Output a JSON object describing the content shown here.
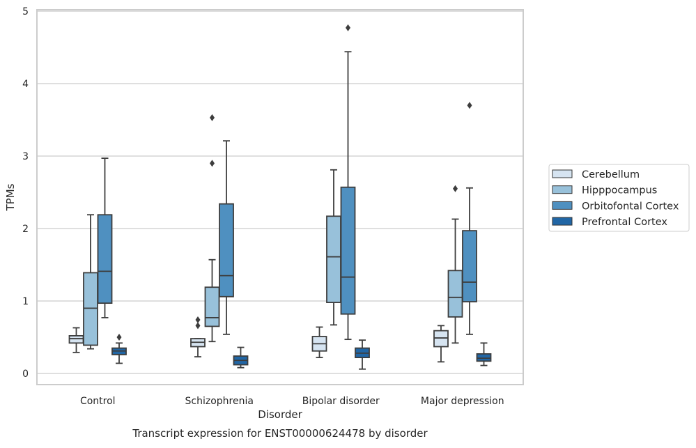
{
  "chart_data": {
    "type": "box",
    "caption": "Transcript expression for ENST00000624478 by disorder",
    "xlabel": "Disorder",
    "ylabel": "TPMs",
    "ylim": [
      -0.15,
      5.0
    ],
    "yticks": [
      0,
      1,
      2,
      3,
      4,
      5
    ],
    "grid": "horizontal",
    "legend_position": "right",
    "categories": [
      "Control",
      "Schizophrenia",
      "Bipolar disorder",
      "Major depression"
    ],
    "series": [
      {
        "name": "Cerebellum",
        "color": "#d6e4f1",
        "boxes": [
          {
            "whislo": 0.29,
            "q1": 0.42,
            "med": 0.48,
            "q3": 0.52,
            "whishi": 0.63,
            "fliers": []
          },
          {
            "whislo": 0.23,
            "q1": 0.37,
            "med": 0.43,
            "q3": 0.48,
            "whishi": 0.48,
            "fliers": [
              0.66,
              0.74
            ]
          },
          {
            "whislo": 0.22,
            "q1": 0.31,
            "med": 0.41,
            "q3": 0.51,
            "whishi": 0.64,
            "fliers": []
          },
          {
            "whislo": 0.16,
            "q1": 0.37,
            "med": 0.49,
            "q3": 0.59,
            "whishi": 0.66,
            "fliers": []
          }
        ]
      },
      {
        "name": "Hipppocampus",
        "color": "#98c1da",
        "boxes": [
          {
            "whislo": 0.34,
            "q1": 0.39,
            "med": 0.9,
            "q3": 1.39,
            "whishi": 2.19,
            "fliers": []
          },
          {
            "whislo": 0.44,
            "q1": 0.65,
            "med": 0.77,
            "q3": 1.19,
            "whishi": 1.57,
            "fliers": [
              2.9,
              3.53
            ]
          },
          {
            "whislo": 0.67,
            "q1": 0.98,
            "med": 1.61,
            "q3": 2.17,
            "whishi": 2.81,
            "fliers": []
          },
          {
            "whislo": 0.42,
            "q1": 0.78,
            "med": 1.05,
            "q3": 1.42,
            "whishi": 2.13,
            "fliers": [
              2.55
            ]
          }
        ]
      },
      {
        "name": "Orbitofontal Cortex",
        "color": "#4f90c0",
        "boxes": [
          {
            "whislo": 0.77,
            "q1": 0.97,
            "med": 1.41,
            "q3": 2.19,
            "whishi": 2.97,
            "fliers": []
          },
          {
            "whislo": 0.54,
            "q1": 1.06,
            "med": 1.35,
            "q3": 2.34,
            "whishi": 3.21,
            "fliers": []
          },
          {
            "whislo": 0.47,
            "q1": 0.82,
            "med": 1.33,
            "q3": 2.57,
            "whishi": 4.44,
            "fliers": [
              4.77
            ]
          },
          {
            "whislo": 0.54,
            "q1": 0.99,
            "med": 1.26,
            "q3": 1.97,
            "whishi": 2.56,
            "fliers": [
              3.7
            ]
          }
        ]
      },
      {
        "name": "Prefrontal Cortex",
        "color": "#2166a5",
        "boxes": [
          {
            "whislo": 0.14,
            "q1": 0.26,
            "med": 0.31,
            "q3": 0.35,
            "whishi": 0.42,
            "fliers": [
              0.5
            ]
          },
          {
            "whislo": 0.08,
            "q1": 0.12,
            "med": 0.18,
            "q3": 0.24,
            "whishi": 0.36,
            "fliers": []
          },
          {
            "whislo": 0.06,
            "q1": 0.22,
            "med": 0.28,
            "q3": 0.35,
            "whishi": 0.46,
            "fliers": []
          },
          {
            "whislo": 0.11,
            "q1": 0.17,
            "med": 0.21,
            "q3": 0.27,
            "whishi": 0.42,
            "fliers": []
          }
        ]
      }
    ]
  }
}
